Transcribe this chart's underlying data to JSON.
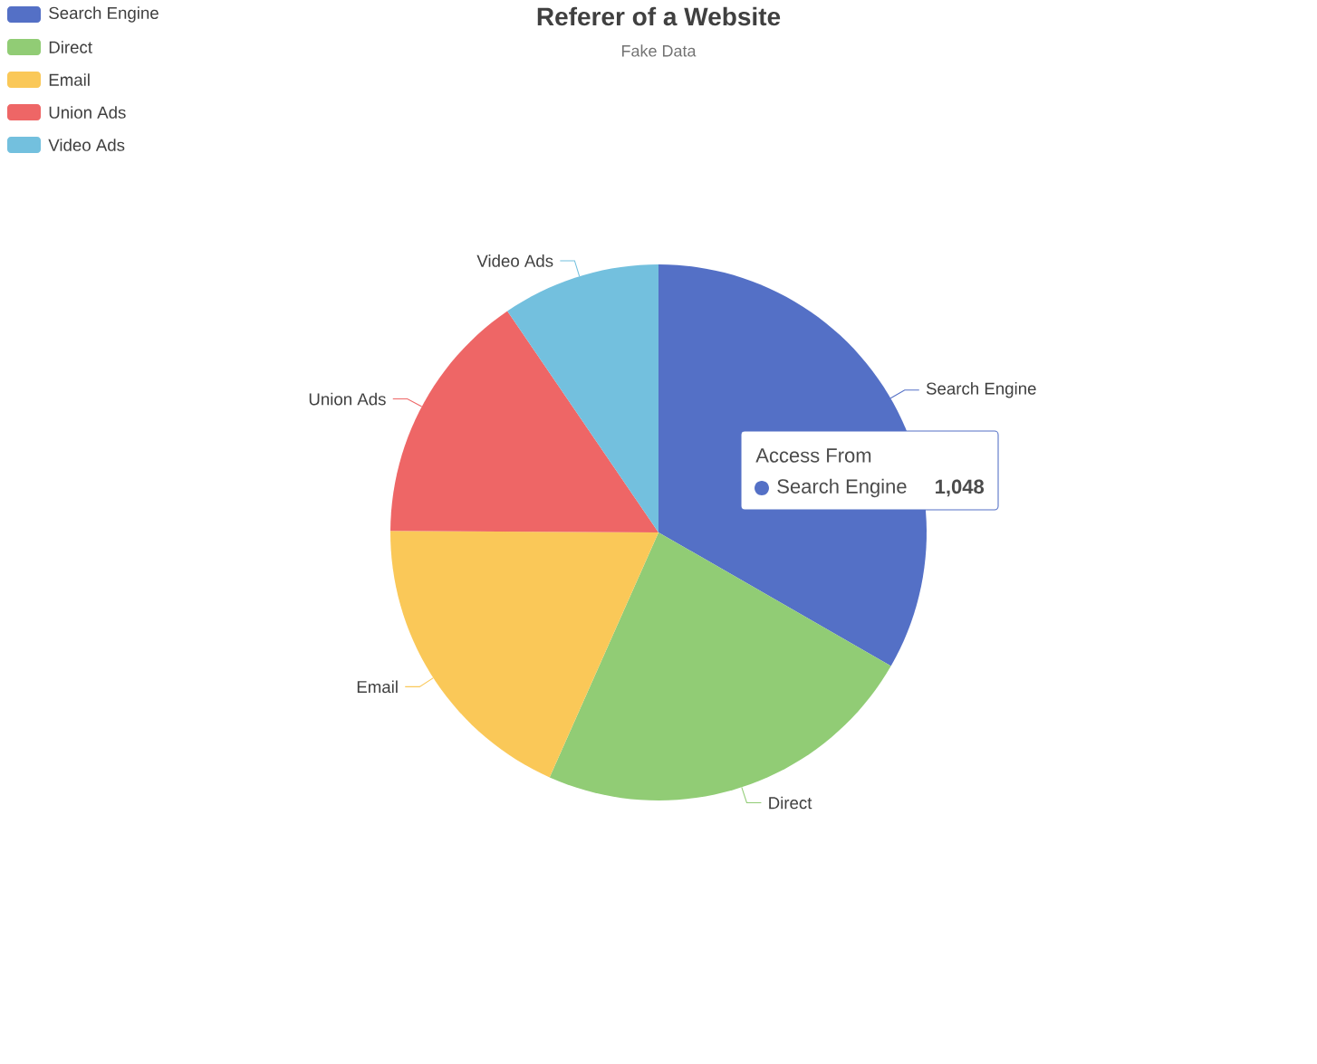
{
  "chart_data": {
    "type": "pie",
    "title": "Referer of a Website",
    "subtitle": "Fake Data",
    "categories": [
      "Search Engine",
      "Direct",
      "Email",
      "Union Ads",
      "Video Ads"
    ],
    "values": [
      1048,
      735,
      580,
      484,
      300
    ],
    "colors": [
      "#5470c6",
      "#91cc75",
      "#fac858",
      "#ee6666",
      "#73c0de"
    ],
    "legend": "top left",
    "annotations": [
      "Access From"
    ],
    "value_labels": [
      "1,048",
      null,
      null,
      null,
      null
    ]
  }
}
